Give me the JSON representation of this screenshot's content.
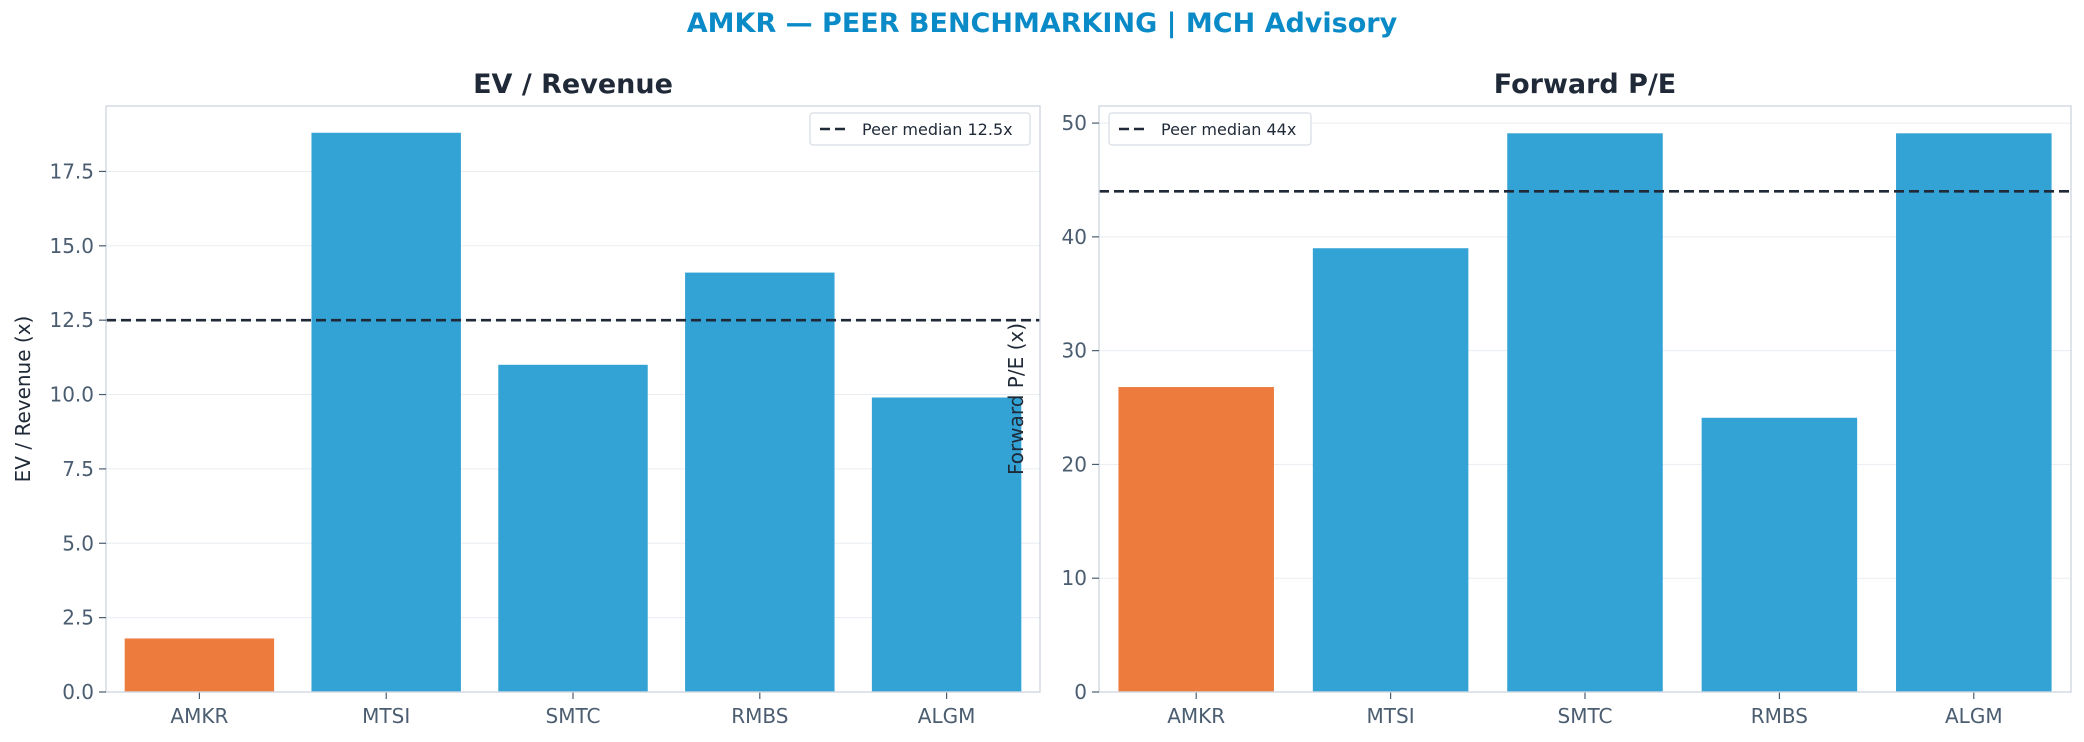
{
  "suptitle": "AMKR — PEER BENCHMARKING | MCH Advisory",
  "colors": {
    "title": "#0a8bc7",
    "highlight": "#ed7b3e",
    "peer": "#33a2d4",
    "median_line": "#1f2937",
    "frame": "#cfd8e0",
    "grid": "#e8edf2"
  },
  "chart_data": [
    {
      "type": "bar",
      "title": "EV / Revenue",
      "ylabel": "EV / Revenue (x)",
      "xlabel": "",
      "categories": [
        "AMKR",
        "MTSI",
        "SMTC",
        "RMBS",
        "ALGM"
      ],
      "values": [
        1.8,
        18.8,
        11.0,
        14.1,
        9.9
      ],
      "highlight": [
        "AMKR"
      ],
      "ylim": [
        0,
        19.7
      ],
      "yticks": [
        0.0,
        2.5,
        5.0,
        7.5,
        10.0,
        12.5,
        15.0,
        17.5
      ],
      "ytick_labels": [
        "0.0",
        "2.5",
        "5.0",
        "7.5",
        "10.0",
        "12.5",
        "15.0",
        "17.5"
      ],
      "reference_line": {
        "value": 12.5,
        "label": "Peer median 12.5x"
      },
      "legend_position": "top-right",
      "grid": true
    },
    {
      "type": "bar",
      "title": "Forward P/E",
      "ylabel": "Forward P/E (x)",
      "xlabel": "",
      "categories": [
        "AMKR",
        "MTSI",
        "SMTC",
        "RMBS",
        "ALGM"
      ],
      "values": [
        26.8,
        39.0,
        49.1,
        24.1,
        49.1
      ],
      "highlight": [
        "AMKR"
      ],
      "ylim": [
        0,
        51.5
      ],
      "yticks": [
        0,
        10,
        20,
        30,
        40,
        50
      ],
      "ytick_labels": [
        "0",
        "10",
        "20",
        "30",
        "40",
        "50"
      ],
      "reference_line": {
        "value": 44,
        "label": "Peer median 44x"
      },
      "legend_position": "top-left",
      "grid": true
    }
  ]
}
